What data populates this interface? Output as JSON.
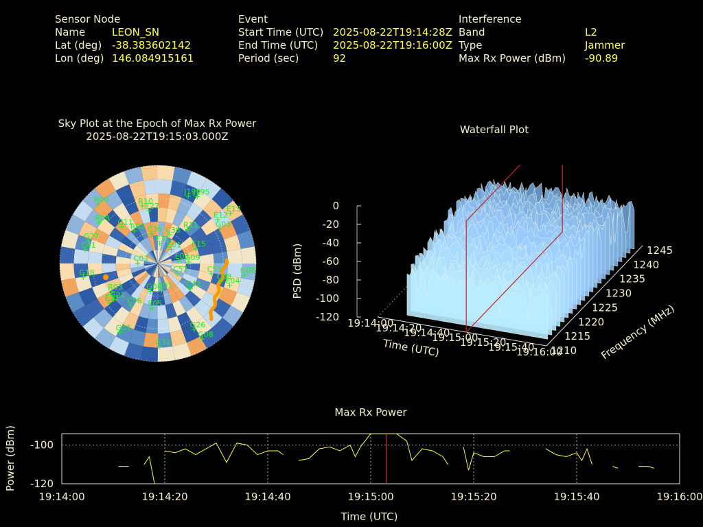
{
  "header": {
    "sensor": {
      "title": "Sensor Node",
      "name_label": "Name",
      "name": "LEON_SN",
      "lat_label": "Lat (deg)",
      "lat": "-38.383602142",
      "lon_label": "Lon (deg)",
      "lon": "146.084915161"
    },
    "event": {
      "title": "Event",
      "start_label": "Start Time (UTC)",
      "start": "2025-08-22T19:14:28Z",
      "end_label": "End Time (UTC)",
      "end": "2025-08-22T19:16:00Z",
      "period_label": "Period (sec)",
      "period": "92"
    },
    "interference": {
      "title": "Interference",
      "band_label": "Band",
      "band": "L2",
      "type_label": "Type",
      "type": "Jammer",
      "maxrx_label": "Max Rx Power (dBm)",
      "maxrx": "-90.89"
    }
  },
  "skyplot": {
    "title_line1": "Sky Plot at the Epoch of Max Rx Power",
    "title_line2": "2025-08-22T19:15:03.000Z",
    "satellites": [
      "J195",
      "E12",
      "G03",
      "E03",
      "E04",
      "C42",
      "G08",
      "G32",
      "C01",
      "G01",
      "C56",
      "R03",
      "C03",
      "G27",
      "R08",
      "R09",
      "C36",
      "C38",
      "J196",
      "E01",
      "G09",
      "G08",
      "C08",
      "C52",
      "G26",
      "E05",
      "G04",
      "E21",
      "G21",
      "G18",
      "C41",
      "G11",
      "R02",
      "R10",
      "E27",
      "E31",
      "R11",
      "E13",
      "E15",
      "C51"
    ],
    "colors": {
      "sat_label": "#22ee22",
      "track": "#ff9900"
    }
  },
  "waterfall": {
    "title": "Waterfall Plot",
    "zlabel": "PSD (dBm)",
    "xlabel": "Time (UTC)",
    "ylabel": "Frequency (MHz)",
    "zticks": [
      "0",
      "-20",
      "-40",
      "-60",
      "-80",
      "-100",
      "-120"
    ],
    "xticks": [
      "19:14:00",
      "19:14:20",
      "19:14:40",
      "19:15:00",
      "19:15:20",
      "19:15:40",
      "19:16:00"
    ],
    "yticks": [
      "1210",
      "1215",
      "1220",
      "1225",
      "1230",
      "1235",
      "1240",
      "1245"
    ],
    "colors": {
      "marker_plane": "#cc2222"
    }
  },
  "chart_data": {
    "type": "line",
    "title": "Max Rx Power",
    "xlabel": "Time (UTC)",
    "ylabel": "Power (dBm)",
    "xlim": [
      "19:14:00",
      "19:16:00"
    ],
    "ylim": [
      -120,
      -80
    ],
    "yticks": [
      -100,
      -120
    ],
    "xticks": [
      "19:14:00",
      "19:14:20",
      "19:14:40",
      "19:15:00",
      "19:15:20",
      "19:15:40",
      "19:16:00"
    ],
    "grid": true,
    "marker_time": "19:15:03",
    "line_color": "#ffff33",
    "marker_color": "#dd2222",
    "segments": [
      [
        [
          11,
          -111
        ],
        [
          13,
          -111
        ]
      ],
      [
        [
          16,
          -110
        ],
        [
          17,
          -106
        ],
        [
          18,
          -120
        ]
      ],
      [
        [
          20,
          -103
        ],
        [
          22,
          -104
        ],
        [
          24,
          -102
        ],
        [
          26,
          -105
        ],
        [
          28,
          -102
        ],
        [
          30,
          -99
        ],
        [
          32,
          -109
        ],
        [
          34,
          -99
        ],
        [
          36,
          -100
        ],
        [
          38,
          -105
        ],
        [
          40,
          -103
        ],
        [
          42,
          -103
        ],
        [
          43,
          -105
        ]
      ],
      [
        [
          46,
          -108
        ],
        [
          48,
          -107
        ],
        [
          50,
          -102
        ],
        [
          52,
          -101
        ],
        [
          54,
          -103
        ],
        [
          56,
          -100
        ],
        [
          57,
          -106
        ],
        [
          58,
          -101
        ],
        [
          60,
          -94
        ],
        [
          62,
          -92
        ],
        [
          63,
          -91
        ],
        [
          65,
          -92
        ],
        [
          67,
          -98
        ],
        [
          68,
          -108
        ],
        [
          70,
          -102
        ],
        [
          72,
          -103
        ],
        [
          74,
          -106
        ],
        [
          75,
          -110
        ]
      ],
      [
        [
          78,
          -101
        ],
        [
          79,
          -113
        ],
        [
          80,
          -104
        ],
        [
          82,
          -106
        ],
        [
          84,
          -106
        ],
        [
          86,
          -103
        ],
        [
          87,
          -103
        ]
      ],
      [
        [
          94,
          -102
        ],
        [
          96,
          -105
        ],
        [
          98,
          -106
        ],
        [
          100,
          -104
        ],
        [
          101,
          -108
        ],
        [
          102,
          -102
        ],
        [
          103,
          -110
        ]
      ],
      [
        [
          107,
          -111
        ],
        [
          108,
          -112
        ]
      ],
      [
        [
          112,
          -111
        ],
        [
          114,
          -111
        ],
        [
          115,
          -112
        ]
      ]
    ]
  }
}
